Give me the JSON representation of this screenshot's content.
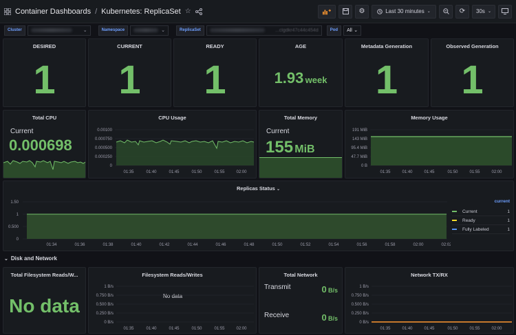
{
  "header": {
    "breadcrumb_root": "Container Dashboards",
    "breadcrumb_sep": "/",
    "dashboard_title": "Kubernetes: ReplicaSet",
    "time_range": "Last 30 minutes",
    "refresh_interval": "30s"
  },
  "variables": {
    "cluster_label": "Cluster",
    "namespace_label": "Namespace",
    "replicaset_label": "ReplicaSet",
    "replicaset_value_visible": "...clgdkr47c44c454d",
    "pod_label": "Pod",
    "pod_value": "All"
  },
  "stats": {
    "desired": {
      "title": "DESIRED",
      "value": "1"
    },
    "current": {
      "title": "CURRENT",
      "value": "1"
    },
    "ready": {
      "title": "READY",
      "value": "1"
    },
    "age": {
      "title": "AGE",
      "value": "1.93",
      "unit": "week"
    },
    "metadata_generation": {
      "title": "Metadata Generation",
      "value": "1"
    },
    "observed_generation": {
      "title": "Observed Generation",
      "value": "1"
    }
  },
  "total_cpu": {
    "title": "Total CPU",
    "label": "Current",
    "value": "0.000698"
  },
  "cpu_usage": {
    "title": "CPU Usage",
    "y_ticks": [
      "0.00100",
      "0.000750",
      "0.000500",
      "0.000250",
      "0"
    ],
    "x_ticks": [
      "01:35",
      "01:40",
      "01:45",
      "01:50",
      "01:55",
      "02:00"
    ]
  },
  "total_memory": {
    "title": "Total Memory",
    "label": "Current",
    "value": "155",
    "unit": "MiB"
  },
  "memory_usage": {
    "title": "Memory Usage",
    "y_ticks": [
      "191 MiB",
      "143 MiB",
      "95.4 MiB",
      "47.7 MiB",
      "0 B"
    ],
    "x_ticks": [
      "01:35",
      "01:40",
      "01:45",
      "01:50",
      "01:55",
      "02:00"
    ]
  },
  "replicas_status": {
    "title": "Replicas Status",
    "y_ticks": [
      "1.50",
      "1",
      "0.500",
      "0"
    ],
    "x_ticks": [
      "01:34",
      "01:36",
      "01:38",
      "01:40",
      "01:42",
      "01:44",
      "01:46",
      "01:48",
      "01:50",
      "01:52",
      "01:54",
      "01:56",
      "01:58",
      "02:00",
      "02:02"
    ],
    "legend_header": "current",
    "legend": [
      {
        "name": "Current",
        "value": "1",
        "color": "#73bf69"
      },
      {
        "name": "Ready",
        "value": "1",
        "color": "#fade2a"
      },
      {
        "name": "Fully Labeled",
        "value": "1",
        "color": "#5794f2"
      }
    ]
  },
  "section": {
    "title": "Disk and Network"
  },
  "fs_total": {
    "title": "Total Filesystem Reads/W...",
    "value": "No data"
  },
  "fs_rw": {
    "title": "Filesystem Reads/Writes",
    "no_data": "No data",
    "y_ticks": [
      "1 B/s",
      "0.750 B/s",
      "0.500 B/s",
      "0.250 B/s",
      "0 B/s"
    ],
    "x_ticks": [
      "01:35",
      "01:40",
      "01:45",
      "01:50",
      "01:55",
      "02:00"
    ]
  },
  "total_network": {
    "title": "Total Network",
    "transmit_label": "Transmit",
    "transmit_value": "0",
    "transmit_unit": "B/s",
    "receive_label": "Receive",
    "receive_value": "0",
    "receive_unit": "B/s"
  },
  "network_txrx": {
    "title": "Network TX/RX",
    "y_ticks": [
      "1 B/s",
      "0.750 B/s",
      "0.500 B/s",
      "0.250 B/s",
      "0 B/s"
    ],
    "x_ticks": [
      "01:35",
      "01:40",
      "01:45",
      "01:50",
      "01:55",
      "02:00"
    ]
  },
  "colors": {
    "accent_green": "#73bf69",
    "accent_blue": "#6e9fff",
    "background": "#111217",
    "panel": "#181b1f",
    "tx_orange": "#ff9830"
  }
}
